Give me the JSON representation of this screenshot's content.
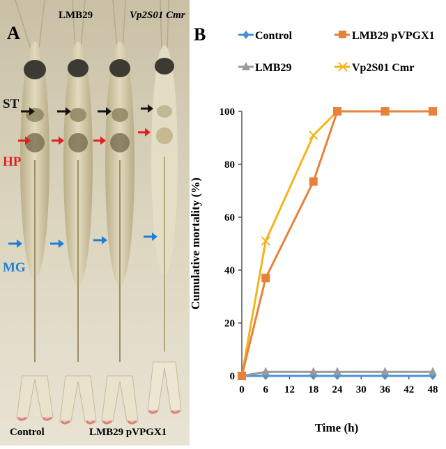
{
  "photo_panel": {
    "panel_letter": "A",
    "labels_top": [
      "LMB29",
      "Vp2S01 Cmr"
    ],
    "labels_bottom": [
      "Control",
      "LMB29 pVPGX1"
    ],
    "organ_labels": [
      {
        "text": "ST",
        "color": "#111111"
      },
      {
        "text": "HP",
        "color": "#e02020"
      },
      {
        "text": "MG",
        "color": "#1f7fd6"
      }
    ],
    "background_color": "#d8d0b8"
  },
  "chart_data": {
    "type": "line",
    "panel_letter": "B",
    "title": "",
    "xlabel": "Time (h)",
    "ylabel": "Cumulative mortality (%)",
    "x": [
      0,
      6,
      18,
      24,
      36,
      48
    ],
    "x_ticks": [
      0,
      6,
      12,
      18,
      24,
      30,
      36,
      42,
      48
    ],
    "xlim": [
      0,
      48
    ],
    "ylim": [
      0,
      100
    ],
    "y_ticks": [
      0,
      20,
      40,
      60,
      80,
      100
    ],
    "grid": false,
    "legend_position": "top",
    "series": [
      {
        "name": "Control",
        "color": "#4a90d9",
        "marker": "diamond",
        "values": [
          0,
          0,
          0,
          0,
          0,
          0
        ]
      },
      {
        "name": "LMB29 pVPGX1",
        "color": "#e8813a",
        "marker": "square",
        "values": [
          0,
          37,
          73.5,
          100,
          100,
          100
        ]
      },
      {
        "name": "LMB29",
        "color": "#9a9a9a",
        "marker": "triangle",
        "values": [
          0,
          1.5,
          1.5,
          1.5,
          1.5,
          1.5
        ]
      },
      {
        "name": "Vp2S01 Cmr",
        "color": "#f2b619",
        "marker": "x",
        "values": [
          0,
          51,
          91,
          100,
          100,
          100
        ]
      }
    ]
  }
}
